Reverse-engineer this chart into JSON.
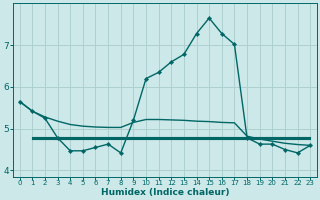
{
  "xlabel": "Humidex (Indice chaleur)",
  "ylabel": "",
  "bg_color": "#cce8e8",
  "grid_color": "#aed0d0",
  "line_color": "#006666",
  "xlim": [
    -0.5,
    23.5
  ],
  "ylim": [
    3.85,
    8.0
  ],
  "yticks": [
    4,
    5,
    6,
    7
  ],
  "xticks": [
    0,
    1,
    2,
    3,
    4,
    5,
    6,
    7,
    8,
    9,
    10,
    11,
    12,
    13,
    14,
    15,
    16,
    17,
    18,
    19,
    20,
    21,
    22,
    23
  ],
  "line1_x": [
    0,
    1,
    2,
    3,
    4,
    5,
    6,
    7,
    8,
    9,
    10,
    11,
    12,
    13,
    14,
    15,
    16,
    17,
    18,
    19,
    20,
    21,
    22,
    23
  ],
  "line1_y": [
    5.65,
    5.42,
    5.25,
    4.78,
    4.47,
    4.47,
    4.55,
    4.63,
    4.42,
    5.2,
    6.2,
    6.35,
    6.6,
    6.78,
    7.28,
    7.65,
    7.28,
    7.02,
    4.78,
    4.63,
    4.63,
    4.5,
    4.42,
    4.6
  ],
  "line2_x": [
    0,
    1,
    2,
    3,
    4,
    5,
    6,
    7,
    8,
    9,
    10,
    11,
    12,
    13,
    14,
    15,
    16,
    17,
    18,
    19,
    20,
    21,
    22,
    23
  ],
  "line2_y": [
    5.65,
    5.42,
    5.28,
    5.18,
    5.1,
    5.06,
    5.04,
    5.03,
    5.03,
    5.15,
    5.22,
    5.22,
    5.21,
    5.2,
    5.18,
    5.17,
    5.15,
    5.14,
    4.82,
    4.75,
    4.7,
    4.65,
    4.62,
    4.6
  ],
  "line3_x": [
    1,
    2,
    3,
    4,
    5,
    6,
    7,
    8,
    9,
    10,
    11,
    12,
    13,
    14,
    15,
    16,
    17,
    18,
    19,
    20,
    21,
    22,
    23
  ],
  "line3_y": [
    4.8,
    4.8,
    4.8,
    4.8,
    4.8,
    4.8,
    4.8,
    4.8,
    4.8,
    4.8,
    4.8,
    4.8,
    4.8,
    4.8,
    4.8,
    4.8,
    4.8,
    4.8,
    4.8,
    4.8,
    4.8,
    4.8,
    4.8
  ],
  "line4_x": [
    1,
    2,
    3,
    4,
    5,
    6,
    7,
    8,
    9,
    10,
    11,
    12,
    13,
    14,
    15,
    16,
    17,
    18,
    19,
    20,
    21,
    22,
    23
  ],
  "line4_y": [
    4.78,
    4.78,
    4.78,
    4.78,
    4.78,
    4.78,
    4.78,
    4.78,
    4.78,
    4.78,
    4.78,
    4.78,
    4.78,
    4.78,
    4.78,
    4.78,
    4.78,
    4.78,
    4.78,
    4.78,
    4.78,
    4.78,
    4.78
  ],
  "line5_x": [
    1,
    2,
    3,
    4,
    5,
    6,
    7,
    8,
    9,
    10,
    11,
    12,
    13,
    14,
    15,
    16,
    17,
    18,
    19,
    20,
    21,
    22,
    23
  ],
  "line5_y": [
    4.76,
    4.76,
    4.76,
    4.76,
    4.76,
    4.76,
    4.76,
    4.76,
    4.76,
    4.76,
    4.76,
    4.76,
    4.76,
    4.76,
    4.76,
    4.76,
    4.76,
    4.76,
    4.76,
    4.76,
    4.76,
    4.76,
    4.76
  ]
}
